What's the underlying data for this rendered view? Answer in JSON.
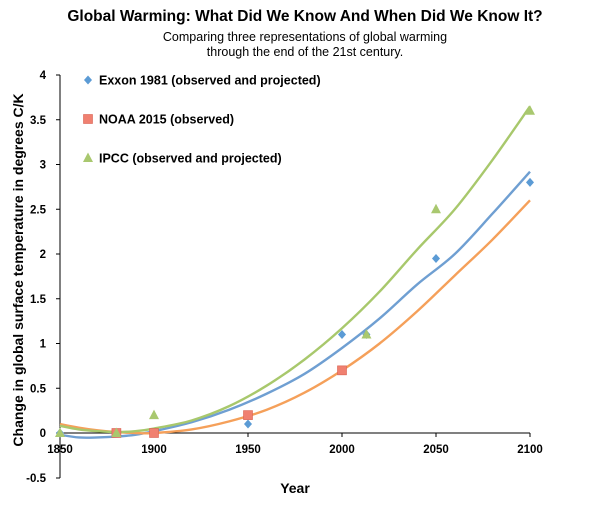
{
  "chart_data": {
    "type": "scatter",
    "title": "Global Warming: What Did We Know And When Did We Know It?",
    "subtitle": "Comparing three representations of global warming through the end of the 21st century.",
    "xlabel": "Year",
    "ylabel": "Change in global surface temperature in degrees C/K",
    "xlim": [
      1850,
      2100
    ],
    "ylim": [
      -0.5,
      4
    ],
    "xticks": [
      1850,
      1900,
      1950,
      2000,
      2050,
      2100
    ],
    "yticks": [
      -0.5,
      0,
      0.5,
      1,
      1.5,
      2,
      2.5,
      3,
      3.5,
      4
    ],
    "legend_position": "top-left",
    "trendlines": "quadratic",
    "series": [
      {
        "name": "Exxon 1981 (observed and projected)",
        "marker": "diamond",
        "color": "#5b9bd5",
        "line_color": "#6f9fd2",
        "points": [
          [
            1850,
            0
          ],
          [
            1880,
            0
          ],
          [
            1900,
            0
          ],
          [
            1950,
            0.1
          ],
          [
            2000,
            1.1
          ],
          [
            2013,
            1.1
          ],
          [
            2050,
            1.95
          ],
          [
            2100,
            2.8
          ]
        ]
      },
      {
        "name": "NOAA 2015 (observed)",
        "marker": "square",
        "color": "#f08070",
        "line_color": "#f5a05a",
        "points": [
          [
            1880,
            0
          ],
          [
            1900,
            0
          ],
          [
            1950,
            0.2
          ],
          [
            2000,
            0.7
          ]
        ]
      },
      {
        "name": "IPCC (observed and projected)",
        "marker": "triangle",
        "color": "#a9c86f",
        "line_color": "#a8c86c",
        "points": [
          [
            1850,
            0
          ],
          [
            1880,
            0
          ],
          [
            1900,
            0.2
          ],
          [
            2013,
            1.1
          ],
          [
            2050,
            2.5
          ],
          [
            2100,
            3.6
          ]
        ]
      }
    ],
    "trend_series": [
      {
        "name": "Exxon 1981 trend",
        "x": [
          1850,
          1860,
          1870,
          1880,
          1890,
          1900,
          1920,
          1940,
          1960,
          1980,
          2000,
          2020,
          2040,
          2060,
          2080,
          2100
        ],
        "y": [
          -0.02,
          -0.05,
          -0.05,
          -0.04,
          -0.02,
          0.02,
          0.12,
          0.26,
          0.44,
          0.66,
          0.95,
          1.28,
          1.66,
          2.0,
          2.45,
          2.92
        ]
      },
      {
        "name": "NOAA 2015 trend",
        "x": [
          1850,
          1860,
          1870,
          1880,
          1890,
          1900,
          1920,
          1940,
          1960,
          1980,
          2000,
          2020,
          2040,
          2060,
          2080,
          2100
        ],
        "y": [
          0.1,
          0.06,
          0.03,
          0.01,
          0.0,
          0.0,
          0.04,
          0.13,
          0.26,
          0.45,
          0.7,
          1.0,
          1.36,
          1.76,
          2.16,
          2.6
        ]
      },
      {
        "name": "IPCC trend",
        "x": [
          1850,
          1860,
          1870,
          1880,
          1890,
          1900,
          1920,
          1940,
          1960,
          1980,
          2000,
          2020,
          2040,
          2060,
          2080,
          2100
        ],
        "y": [
          0.08,
          0.04,
          0.02,
          0.01,
          0.02,
          0.05,
          0.14,
          0.3,
          0.53,
          0.82,
          1.17,
          1.58,
          2.05,
          2.5,
          3.05,
          3.65
        ]
      }
    ]
  }
}
